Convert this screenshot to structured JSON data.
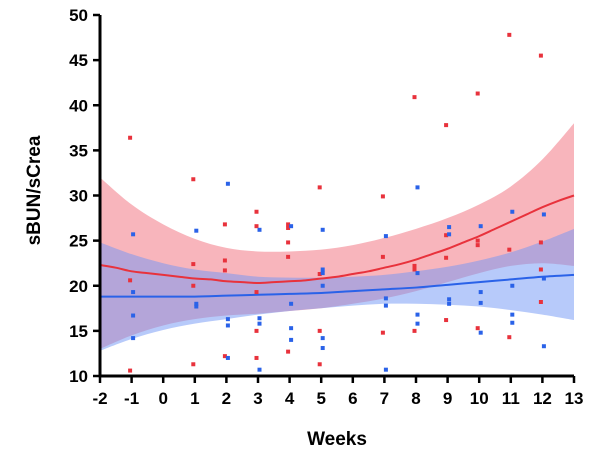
{
  "chart_data": {
    "type": "scatter",
    "title": "",
    "xlabel": "Weeks",
    "ylabel": "sBUN/sCrea",
    "xlim": [
      -2,
      13
    ],
    "ylim": [
      10,
      50
    ],
    "xticks": [
      -2,
      -1,
      0,
      1,
      2,
      3,
      4,
      5,
      6,
      7,
      8,
      9,
      10,
      11,
      12,
      13
    ],
    "yticks": [
      10,
      15,
      20,
      25,
      30,
      35,
      40,
      45,
      50
    ],
    "grid": false,
    "legend": "none",
    "series": [
      {
        "color": "#e8323c",
        "band_color": "#f26b7a",
        "points": [
          [
            -1,
            36.4
          ],
          [
            -1,
            20.6
          ],
          [
            -1,
            10.6
          ],
          [
            1,
            31.8
          ],
          [
            1,
            22.4
          ],
          [
            1,
            20.0
          ],
          [
            1,
            11.3
          ],
          [
            2,
            26.8
          ],
          [
            2,
            22.8
          ],
          [
            2,
            21.7
          ],
          [
            2,
            12.2
          ],
          [
            3,
            28.2
          ],
          [
            3,
            26.6
          ],
          [
            3,
            19.3
          ],
          [
            3,
            15.0
          ],
          [
            3,
            12.0
          ],
          [
            4,
            26.8
          ],
          [
            4,
            26.4
          ],
          [
            4,
            24.8
          ],
          [
            4,
            23.2
          ],
          [
            4,
            12.7
          ],
          [
            5,
            30.9
          ],
          [
            5,
            21.3
          ],
          [
            5,
            15.0
          ],
          [
            5,
            11.3
          ],
          [
            7,
            29.9
          ],
          [
            7,
            23.2
          ],
          [
            7,
            14.8
          ],
          [
            8,
            40.9
          ],
          [
            8,
            22.2
          ],
          [
            8,
            21.8
          ],
          [
            8,
            15.0
          ],
          [
            9,
            37.8
          ],
          [
            9,
            25.6
          ],
          [
            9,
            23.1
          ],
          [
            9,
            16.2
          ],
          [
            10,
            41.3
          ],
          [
            10,
            25.0
          ],
          [
            10,
            24.5
          ],
          [
            10,
            15.3
          ],
          [
            11,
            47.8
          ],
          [
            11,
            24.0
          ],
          [
            11,
            14.3
          ],
          [
            12,
            45.5
          ],
          [
            12,
            24.8
          ],
          [
            12,
            21.8
          ],
          [
            12,
            18.2
          ]
        ],
        "fit": [
          [
            -2,
            22.3
          ],
          [
            -1.5,
            22.0
          ],
          [
            -1,
            21.6
          ],
          [
            -0.5,
            21.4
          ],
          [
            0,
            21.2
          ],
          [
            0.5,
            21.0
          ],
          [
            1,
            20.8
          ],
          [
            1.5,
            20.7
          ],
          [
            2,
            20.5
          ],
          [
            2.5,
            20.4
          ],
          [
            3,
            20.3
          ],
          [
            3.5,
            20.4
          ],
          [
            4,
            20.5
          ],
          [
            4.5,
            20.6
          ],
          [
            5,
            20.8
          ],
          [
            5.5,
            21.0
          ],
          [
            6,
            21.3
          ],
          [
            6.5,
            21.6
          ],
          [
            7,
            22.0
          ],
          [
            7.5,
            22.4
          ],
          [
            8,
            22.9
          ],
          [
            8.5,
            23.5
          ],
          [
            9,
            24.1
          ],
          [
            9.5,
            24.8
          ],
          [
            10,
            25.5
          ],
          [
            10.5,
            26.3
          ],
          [
            11,
            27.1
          ],
          [
            11.5,
            27.9
          ],
          [
            12,
            28.7
          ],
          [
            12.5,
            29.4
          ],
          [
            13,
            30.0
          ]
        ],
        "ci_upper": [
          [
            -2,
            32.0
          ],
          [
            -1,
            29.0
          ],
          [
            0,
            26.8
          ],
          [
            1,
            25.2
          ],
          [
            2,
            24.2
          ],
          [
            3,
            23.8
          ],
          [
            4,
            23.8
          ],
          [
            5,
            24.0
          ],
          [
            6,
            24.5
          ],
          [
            7,
            25.3
          ],
          [
            8,
            26.3
          ],
          [
            9,
            27.5
          ],
          [
            10,
            29.0
          ],
          [
            11,
            31.0
          ],
          [
            12,
            34.0
          ],
          [
            13,
            38.0
          ]
        ],
        "ci_lower": [
          [
            -2,
            13.0
          ],
          [
            -1,
            14.5
          ],
          [
            0,
            15.6
          ],
          [
            1,
            16.3
          ],
          [
            2,
            16.7
          ],
          [
            3,
            16.9
          ],
          [
            4,
            17.2
          ],
          [
            5,
            17.5
          ],
          [
            6,
            18.0
          ],
          [
            7,
            18.6
          ],
          [
            8,
            19.4
          ],
          [
            9,
            20.4
          ],
          [
            10,
            21.4
          ],
          [
            11,
            22.2
          ],
          [
            12,
            22.5
          ],
          [
            13,
            22.2
          ]
        ]
      },
      {
        "color": "#2a62e8",
        "band_color": "#6f96f5",
        "points": [
          [
            -1,
            25.7
          ],
          [
            -1,
            19.3
          ],
          [
            -1,
            16.7
          ],
          [
            -1,
            14.2
          ],
          [
            1,
            26.1
          ],
          [
            1,
            18.0
          ],
          [
            1,
            17.7
          ],
          [
            2,
            31.3
          ],
          [
            2,
            16.3
          ],
          [
            2,
            15.6
          ],
          [
            2,
            12.0
          ],
          [
            3,
            26.2
          ],
          [
            3,
            16.4
          ],
          [
            3,
            15.8
          ],
          [
            3,
            10.7
          ],
          [
            4,
            26.6
          ],
          [
            4,
            18.0
          ],
          [
            4,
            15.3
          ],
          [
            4,
            14.0
          ],
          [
            5,
            26.2
          ],
          [
            5,
            21.8
          ],
          [
            5,
            21.4
          ],
          [
            5,
            20.0
          ],
          [
            5,
            14.2
          ],
          [
            5,
            13.1
          ],
          [
            7,
            25.5
          ],
          [
            7,
            18.6
          ],
          [
            7,
            17.8
          ],
          [
            7,
            10.7
          ],
          [
            8,
            30.9
          ],
          [
            8,
            21.4
          ],
          [
            8,
            16.8
          ],
          [
            8,
            15.8
          ],
          [
            9,
            26.5
          ],
          [
            9,
            25.7
          ],
          [
            9,
            18.5
          ],
          [
            9,
            18.0
          ],
          [
            10,
            26.6
          ],
          [
            10,
            19.3
          ],
          [
            10,
            18.1
          ],
          [
            10,
            14.8
          ],
          [
            11,
            28.2
          ],
          [
            11,
            20.0
          ],
          [
            11,
            16.8
          ],
          [
            11,
            15.9
          ],
          [
            12,
            27.9
          ],
          [
            12,
            20.8
          ],
          [
            12,
            13.3
          ]
        ],
        "fit": [
          [
            -2,
            18.8
          ],
          [
            -1,
            18.8
          ],
          [
            0,
            18.8
          ],
          [
            1,
            18.8
          ],
          [
            2,
            18.9
          ],
          [
            3,
            19.0
          ],
          [
            4,
            19.1
          ],
          [
            5,
            19.2
          ],
          [
            6,
            19.4
          ],
          [
            7,
            19.6
          ],
          [
            8,
            19.8
          ],
          [
            9,
            20.1
          ],
          [
            10,
            20.4
          ],
          [
            11,
            20.7
          ],
          [
            12,
            21.0
          ],
          [
            13,
            21.2
          ]
        ],
        "ci_upper": [
          [
            -2,
            24.8
          ],
          [
            -1,
            23.5
          ],
          [
            0,
            22.5
          ],
          [
            1,
            21.8
          ],
          [
            2,
            21.4
          ],
          [
            3,
            21.0
          ],
          [
            4,
            20.9
          ],
          [
            5,
            20.9
          ],
          [
            6,
            21.0
          ],
          [
            7,
            21.2
          ],
          [
            8,
            21.6
          ],
          [
            9,
            22.1
          ],
          [
            10,
            22.8
          ],
          [
            11,
            23.7
          ],
          [
            12,
            24.9
          ],
          [
            13,
            26.3
          ]
        ],
        "ci_lower": [
          [
            -2,
            12.8
          ],
          [
            -1,
            14.1
          ],
          [
            0,
            15.1
          ],
          [
            1,
            15.8
          ],
          [
            2,
            16.3
          ],
          [
            3,
            16.8
          ],
          [
            4,
            17.2
          ],
          [
            5,
            17.5
          ],
          [
            6,
            17.8
          ],
          [
            7,
            18.0
          ],
          [
            8,
            18.0
          ],
          [
            9,
            17.9
          ],
          [
            10,
            17.7
          ],
          [
            11,
            17.3
          ],
          [
            12,
            16.8
          ],
          [
            13,
            16.2
          ]
        ]
      }
    ]
  }
}
